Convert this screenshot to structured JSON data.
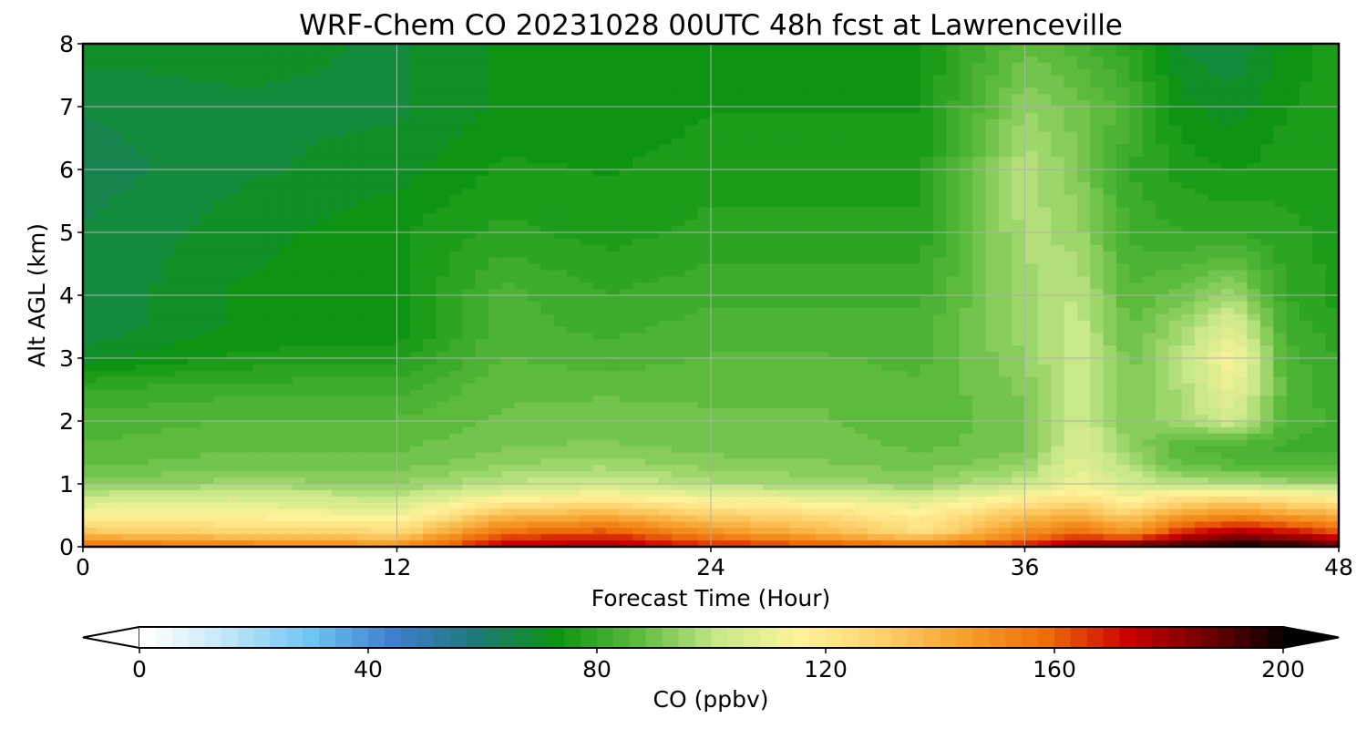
{
  "chart_data": {
    "type": "heatmap",
    "title": "WRF-Chem CO  20231028 00UTC 48h fcst at Lawrenceville",
    "xlabel": "Forecast Time (Hour)",
    "ylabel": "Alt AGL (km)",
    "xlim": [
      0,
      48
    ],
    "ylim": [
      0,
      8
    ],
    "xticks": [
      "0",
      "12",
      "24",
      "36",
      "48"
    ],
    "yticks": [
      "0",
      "1",
      "2",
      "3",
      "4",
      "5",
      "6",
      "7",
      "8"
    ],
    "grid": true,
    "x": [
      0,
      6,
      12,
      16,
      20,
      24,
      28,
      32,
      36,
      38,
      40,
      42,
      44,
      46,
      48
    ],
    "y": [
      0,
      0.2,
      0.5,
      0.8,
      1.0,
      1.3,
      1.6,
      2.0,
      2.5,
      3.0,
      3.5,
      4.0,
      5.0,
      6.0,
      7.0,
      8.0
    ],
    "z": [
      [
        160,
        155,
        150,
        175,
        180,
        170,
        165,
        160,
        170,
        185,
        190,
        195,
        200,
        200,
        190
      ],
      [
        135,
        130,
        128,
        160,
        165,
        150,
        140,
        125,
        150,
        160,
        150,
        170,
        180,
        175,
        165
      ],
      [
        115,
        115,
        112,
        135,
        140,
        130,
        125,
        118,
        135,
        140,
        130,
        145,
        150,
        145,
        140
      ],
      [
        102,
        104,
        100,
        112,
        115,
        110,
        108,
        104,
        115,
        120,
        112,
        120,
        122,
        118,
        115
      ],
      [
        92,
        96,
        94,
        100,
        104,
        98,
        96,
        94,
        102,
        112,
        104,
        100,
        98,
        96,
        96
      ],
      [
        88,
        90,
        90,
        94,
        96,
        93,
        92,
        90,
        94,
        108,
        98,
        88,
        86,
        85,
        84
      ],
      [
        86,
        88,
        88,
        91,
        92,
        90,
        90,
        88,
        90,
        106,
        94,
        86,
        84,
        82,
        82
      ],
      [
        84,
        86,
        86,
        89,
        90,
        89,
        89,
        87,
        90,
        104,
        92,
        96,
        104,
        85,
        82
      ],
      [
        80,
        82,
        82,
        88,
        88,
        88,
        88,
        86,
        92,
        104,
        92,
        98,
        110,
        86,
        80
      ],
      [
        70,
        75,
        76,
        86,
        84,
        86,
        86,
        85,
        94,
        103,
        90,
        100,
        115,
        84,
        80
      ],
      [
        66,
        72,
        72,
        84,
        82,
        84,
        84,
        84,
        96,
        102,
        88,
        96,
        108,
        82,
        78
      ],
      [
        66,
        72,
        73,
        84,
        80,
        82,
        82,
        82,
        96,
        100,
        86,
        90,
        96,
        80,
        76
      ],
      [
        66,
        70,
        74,
        78,
        76,
        78,
        78,
        78,
        98,
        96,
        82,
        80,
        80,
        78,
        76
      ],
      [
        64,
        68,
        70,
        75,
        74,
        76,
        76,
        76,
        100,
        92,
        80,
        76,
        74,
        76,
        76
      ],
      [
        66,
        68,
        68,
        72,
        72,
        74,
        74,
        74,
        94,
        90,
        84,
        72,
        70,
        74,
        76
      ],
      [
        70,
        70,
        68,
        72,
        74,
        74,
        74,
        74,
        88,
        84,
        78,
        68,
        66,
        72,
        76
      ]
    ],
    "colorbar": {
      "label": "CO  (ppbv)",
      "min": 0,
      "max": 200,
      "ticks": [
        "0",
        "40",
        "80",
        "120",
        "160",
        "200"
      ],
      "orientation": "horizontal",
      "placement": "bottom",
      "extend": "both",
      "colors": [
        "#ffffff",
        "#bfe6f7",
        "#6cc5f2",
        "#3f7fcf",
        "#1e7a7a",
        "#0d9412",
        "#5dbb3c",
        "#c8e88a",
        "#fff39a",
        "#fdd06b",
        "#f7a02b",
        "#ee6d0a",
        "#cc0000",
        "#6b0000",
        "#000000"
      ]
    }
  }
}
